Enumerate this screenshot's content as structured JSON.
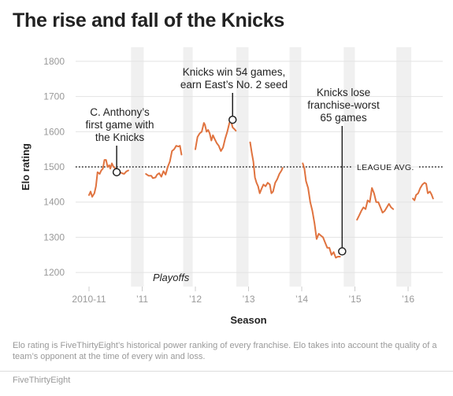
{
  "title": "The rise and fall of the Knicks",
  "note": "Elo rating is FiveThirtyEight’s historical power ranking of every franchise. Elo takes into account the quality of a team’s opponent at the time of every win and loss.",
  "source": "FiveThirtyEight",
  "chart_data": {
    "type": "line",
    "title": "The rise and fall of the Knicks",
    "xlabel": "Season",
    "ylabel": "Elo rating",
    "ylim": [
      1160,
      1840
    ],
    "yticks": [
      1200,
      1300,
      1400,
      1500,
      1600,
      1700,
      1800
    ],
    "xlim": [
      0,
      6.5
    ],
    "xticks": [
      {
        "x": 0,
        "label": "2010-11"
      },
      {
        "x": 1,
        "label": "’11"
      },
      {
        "x": 2,
        "label": "’12"
      },
      {
        "x": 3,
        "label": "’13"
      },
      {
        "x": 4,
        "label": "’14"
      },
      {
        "x": 5,
        "label": "’15"
      },
      {
        "x": 6,
        "label": "’16"
      }
    ],
    "color": "#e0733f",
    "playoff_bands": [
      [
        0.79,
        1.03
      ],
      [
        1.77,
        1.95
      ],
      [
        2.77,
        3.0
      ],
      [
        3.77,
        3.99
      ],
      [
        4.79,
        5.0
      ],
      [
        5.78,
        6.06
      ]
    ],
    "playoffs_label": "Playoffs",
    "reference_line": {
      "y": 1500,
      "label": "LEAGUE AVG."
    },
    "segments": [
      [
        [
          0.0,
          1420
        ],
        [
          0.03,
          1430
        ],
        [
          0.06,
          1415
        ],
        [
          0.1,
          1425
        ],
        [
          0.13,
          1445
        ],
        [
          0.16,
          1485
        ],
        [
          0.2,
          1480
        ],
        [
          0.23,
          1490
        ],
        [
          0.26,
          1495
        ],
        [
          0.29,
          1520
        ],
        [
          0.32,
          1520
        ],
        [
          0.35,
          1500
        ],
        [
          0.38,
          1505
        ],
        [
          0.4,
          1495
        ],
        [
          0.43,
          1510
        ],
        [
          0.46,
          1500
        ],
        [
          0.5,
          1495
        ],
        [
          0.54,
          1487
        ],
        [
          0.58,
          1485
        ],
        [
          0.62,
          1482
        ],
        [
          0.66,
          1480
        ],
        [
          0.7,
          1487
        ],
        [
          0.74,
          1490
        ]
      ],
      [
        [
          1.07,
          1480
        ],
        [
          1.12,
          1475
        ],
        [
          1.17,
          1475
        ],
        [
          1.2,
          1468
        ],
        [
          1.25,
          1470
        ],
        [
          1.28,
          1478
        ],
        [
          1.32,
          1482
        ],
        [
          1.36,
          1472
        ],
        [
          1.4,
          1488
        ],
        [
          1.44,
          1478
        ],
        [
          1.48,
          1500
        ],
        [
          1.52,
          1515
        ],
        [
          1.56,
          1545
        ],
        [
          1.6,
          1550
        ],
        [
          1.64,
          1560
        ],
        [
          1.68,
          1558
        ],
        [
          1.71,
          1560
        ],
        [
          1.74,
          1535
        ]
      ],
      [
        [
          2.0,
          1550
        ],
        [
          2.04,
          1585
        ],
        [
          2.08,
          1595
        ],
        [
          2.12,
          1600
        ],
        [
          2.16,
          1625
        ],
        [
          2.18,
          1620
        ],
        [
          2.21,
          1600
        ],
        [
          2.24,
          1605
        ],
        [
          2.27,
          1595
        ],
        [
          2.3,
          1575
        ],
        [
          2.33,
          1590
        ],
        [
          2.36,
          1580
        ],
        [
          2.4,
          1568
        ],
        [
          2.44,
          1560
        ],
        [
          2.48,
          1545
        ],
        [
          2.52,
          1555
        ],
        [
          2.56,
          1580
        ],
        [
          2.6,
          1600
        ],
        [
          2.64,
          1625
        ],
        [
          2.67,
          1630
        ],
        [
          2.7,
          1612
        ],
        [
          2.73,
          1608
        ],
        [
          2.76,
          1603
        ]
      ],
      [
        [
          3.03,
          1570
        ],
        [
          3.06,
          1540
        ],
        [
          3.09,
          1515
        ],
        [
          3.12,
          1470
        ],
        [
          3.15,
          1455
        ],
        [
          3.18,
          1445
        ],
        [
          3.21,
          1425
        ],
        [
          3.25,
          1440
        ],
        [
          3.28,
          1450
        ],
        [
          3.32,
          1445
        ],
        [
          3.36,
          1455
        ],
        [
          3.4,
          1450
        ],
        [
          3.43,
          1425
        ],
        [
          3.46,
          1430
        ],
        [
          3.5,
          1455
        ],
        [
          3.54,
          1465
        ],
        [
          3.58,
          1480
        ],
        [
          3.62,
          1490
        ],
        [
          3.64,
          1497
        ]
      ],
      [
        [
          4.02,
          1510
        ],
        [
          4.05,
          1495
        ],
        [
          4.08,
          1460
        ],
        [
          4.12,
          1440
        ],
        [
          4.16,
          1400
        ],
        [
          4.2,
          1375
        ],
        [
          4.24,
          1340
        ],
        [
          4.28,
          1295
        ],
        [
          4.32,
          1310
        ],
        [
          4.36,
          1305
        ],
        [
          4.4,
          1300
        ],
        [
          4.44,
          1285
        ],
        [
          4.48,
          1270
        ],
        [
          4.52,
          1270
        ],
        [
          4.56,
          1250
        ],
        [
          4.6,
          1258
        ],
        [
          4.64,
          1242
        ],
        [
          4.68,
          1245
        ],
        [
          4.72,
          1245
        ]
      ],
      [
        [
          5.04,
          1350
        ],
        [
          5.08,
          1362
        ],
        [
          5.12,
          1375
        ],
        [
          5.16,
          1385
        ],
        [
          5.2,
          1380
        ],
        [
          5.24,
          1405
        ],
        [
          5.28,
          1400
        ],
        [
          5.32,
          1440
        ],
        [
          5.36,
          1425
        ],
        [
          5.4,
          1400
        ],
        [
          5.44,
          1400
        ],
        [
          5.48,
          1385
        ],
        [
          5.52,
          1370
        ],
        [
          5.56,
          1375
        ],
        [
          5.6,
          1385
        ],
        [
          5.64,
          1395
        ],
        [
          5.68,
          1385
        ],
        [
          5.72,
          1380
        ]
      ],
      [
        [
          6.09,
          1410
        ],
        [
          6.12,
          1405
        ],
        [
          6.15,
          1420
        ],
        [
          6.19,
          1425
        ],
        [
          6.23,
          1440
        ],
        [
          6.27,
          1450
        ],
        [
          6.31,
          1455
        ],
        [
          6.34,
          1452
        ],
        [
          6.37,
          1425
        ],
        [
          6.41,
          1430
        ],
        [
          6.44,
          1422
        ],
        [
          6.47,
          1410
        ]
      ]
    ],
    "annotations": [
      {
        "lines": [
          "C. Anthony’s",
          "first game with",
          "the Knicks"
        ],
        "point": [
          0.52,
          1485
        ]
      },
      {
        "lines": [
          "Knicks win 54 games,",
          "earn East’s No. 2 seed"
        ],
        "point": [
          2.7,
          1634
        ]
      },
      {
        "lines": [
          "Knicks lose",
          "franchise-worst",
          "65 games"
        ],
        "point": [
          4.76,
          1260
        ]
      }
    ]
  }
}
